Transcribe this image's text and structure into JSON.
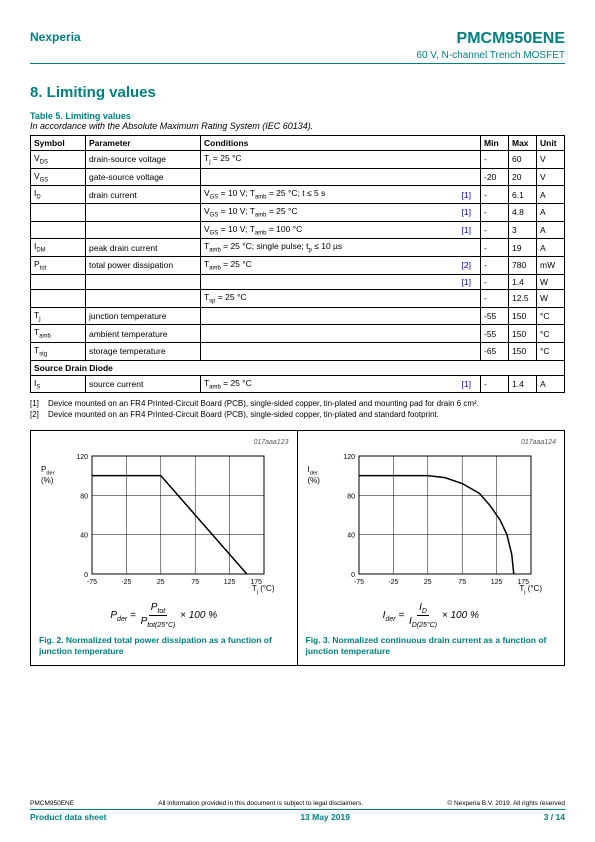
{
  "header": {
    "company": "Nexperia",
    "part": "PMCM950ENE",
    "subtitle": "60 V, N-channel Trench MOSFET"
  },
  "section": {
    "num_title": "8.  Limiting values"
  },
  "table": {
    "caption": "Table 5. Limiting values",
    "note": "In accordance with the Absolute Maximum Rating System (IEC 60134).",
    "headers": {
      "symbol": "Symbol",
      "parameter": "Parameter",
      "conditions": "Conditions",
      "min": "Min",
      "max": "Max",
      "unit": "Unit"
    },
    "rows": [
      {
        "sym": "V<sub>DS</sub>",
        "par": "drain-source voltage",
        "cond": "T<sub>j</sub> = 25 °C",
        "ref": "",
        "min": "-",
        "max": "60",
        "unit": "V"
      },
      {
        "sym": "V<sub>GS</sub>",
        "par": "gate-source voltage",
        "cond": "",
        "ref": "",
        "min": "-20",
        "max": "20",
        "unit": "V"
      },
      {
        "sym": "I<sub>D</sub>",
        "par": "drain current",
        "cond": "V<sub>GS</sub> = 10 V; T<sub>amb</sub> = 25 °C; t ≤ 5 s",
        "ref": "[1]",
        "min": "-",
        "max": "6.1",
        "unit": "A"
      },
      {
        "sym": "",
        "par": "",
        "cond": "V<sub>GS</sub> = 10 V; T<sub>amb</sub> = 25 °C",
        "ref": "[1]",
        "min": "-",
        "max": "4.8",
        "unit": "A"
      },
      {
        "sym": "",
        "par": "",
        "cond": "V<sub>GS</sub> = 10 V; T<sub>amb</sub> = 100 °C",
        "ref": "[1]",
        "min": "-",
        "max": "3",
        "unit": "A"
      },
      {
        "sym": "I<sub>DM</sub>",
        "par": "peak drain current",
        "cond": "T<sub>amb</sub> = 25 °C; single pulse; t<sub>p</sub> ≤  10 µs",
        "ref": "",
        "min": "-",
        "max": "19",
        "unit": "A"
      },
      {
        "sym": "P<sub>tot</sub>",
        "par": "total power dissipation",
        "cond": "T<sub>amb</sub> = 25 °C",
        "ref": "[2]",
        "min": "-",
        "max": "780",
        "unit": "mW"
      },
      {
        "sym": "",
        "par": "",
        "cond": "",
        "ref": "[1]",
        "min": "-",
        "max": "1.4",
        "unit": "W"
      },
      {
        "sym": "",
        "par": "",
        "cond": "T<sub>sp</sub> = 25 °C",
        "ref": "",
        "min": "-",
        "max": "12.5",
        "unit": "W"
      },
      {
        "sym": "T<sub>j</sub>",
        "par": "junction temperature",
        "cond": "",
        "ref": "",
        "min": "-55",
        "max": "150",
        "unit": "°C"
      },
      {
        "sym": "T<sub>amb</sub>",
        "par": "ambient temperature",
        "cond": "",
        "ref": "",
        "min": "-55",
        "max": "150",
        "unit": "°C"
      },
      {
        "sym": "T<sub>stg</sub>",
        "par": "storage temperature",
        "cond": "",
        "ref": "",
        "min": "-65",
        "max": "150",
        "unit": "°C"
      }
    ],
    "subheader": "Source Drain Diode",
    "subrows": [
      {
        "sym": "I<sub>S</sub>",
        "par": "source current",
        "cond": "T<sub>amb</sub> = 25 °C",
        "ref": "[1]",
        "min": "-",
        "max": "1.4",
        "unit": "A"
      }
    ]
  },
  "footnotes": [
    {
      "n": "[1]",
      "t": "Device mounted on an FR4 Printed-Circuit Board (PCB), single-sided copper, tin-plated and mounting pad for drain 6 cm²."
    },
    {
      "n": "[2]",
      "t": "Device mounted on an FR4 Printed-Circuit Board (PCB), single-sided copper, tin-plated and standard footprint."
    }
  ],
  "chart1": {
    "id": "017aaa123",
    "ylabel": "P<sub>der</sub><br>(%)",
    "xlabel": "T<sub>j</sub> (°C)",
    "xlim": [
      -75,
      175
    ],
    "xticks": [
      -75,
      -25,
      25,
      75,
      125,
      175
    ],
    "ylim": [
      0,
      120
    ],
    "yticks": [
      0,
      40,
      80,
      120
    ],
    "line": [
      [
        -75,
        100
      ],
      [
        25,
        100
      ],
      [
        150,
        0
      ]
    ],
    "grid_color": "#000",
    "line_color": "#000",
    "formula_lhs": "P<sub>der</sub> =",
    "formula_top": "P<sub>tot</sub>",
    "formula_bot": "P<sub>tot(25°C)</sub>",
    "formula_rhs": "× 100  %",
    "caption": "Fig. 2.    Normalized total power dissipation as a function of junction temperature"
  },
  "chart2": {
    "id": "017aaa124",
    "ylabel": "I<sub>der</sub><br>(%)",
    "xlabel": "T<sub>j</sub> (°C)",
    "xlim": [
      -75,
      175
    ],
    "xticks": [
      -75,
      -25,
      25,
      75,
      125,
      175
    ],
    "ylim": [
      0,
      120
    ],
    "yticks": [
      0,
      40,
      80,
      120
    ],
    "line": [
      [
        -75,
        100
      ],
      [
        25,
        100
      ],
      [
        50,
        98
      ],
      [
        75,
        92
      ],
      [
        100,
        82
      ],
      [
        115,
        70
      ],
      [
        130,
        55
      ],
      [
        140,
        40
      ],
      [
        147,
        20
      ],
      [
        150,
        0
      ]
    ],
    "grid_color": "#000",
    "line_color": "#000",
    "formula_lhs": "I<sub>der</sub> =",
    "formula_top": "I<sub>D</sub>",
    "formula_bot": "I<sub>D(25°C)</sub>",
    "formula_rhs": "× 100  %",
    "caption": "Fig. 3.    Normalized continuous drain current as a function of junction temperature"
  },
  "footer": {
    "left_small": "PMCM950ENE",
    "mid_small": "All information provided in this document is subject to legal disclaimers.",
    "right_small": "© Nexperia B.V. 2019. All rights reserved",
    "left": "Product data sheet",
    "mid": "13 May 2019",
    "right": "3 / 14"
  }
}
